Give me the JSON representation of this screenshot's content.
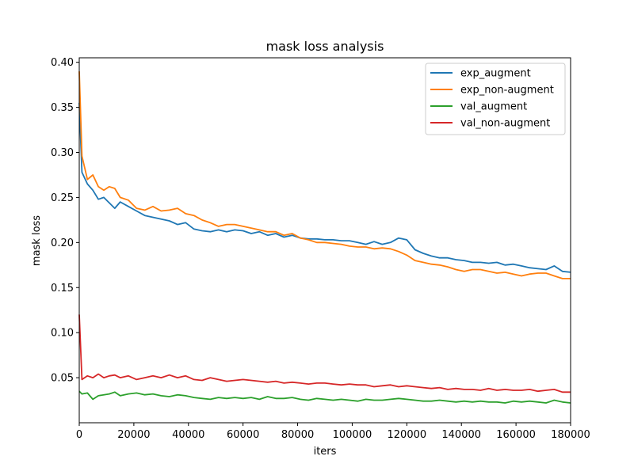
{
  "chart_data": {
    "type": "line",
    "title": "mask loss analysis",
    "xlabel": "iters",
    "ylabel": "mask loss",
    "xlim": [
      0,
      180000
    ],
    "ylim": [
      0.0,
      0.405
    ],
    "xticks": [
      0,
      20000,
      40000,
      60000,
      80000,
      100000,
      120000,
      140000,
      160000,
      180000
    ],
    "xtick_labels": [
      "0",
      "20000",
      "40000",
      "60000",
      "80000",
      "100000",
      "120000",
      "140000",
      "160000",
      "180000"
    ],
    "yticks": [
      0.05,
      0.1,
      0.15,
      0.2,
      0.25,
      0.3,
      0.35,
      0.4
    ],
    "ytick_labels": [
      "0.05",
      "0.10",
      "0.15",
      "0.20",
      "0.25",
      "0.30",
      "0.35",
      "0.40"
    ],
    "grid": false,
    "legend_position": "top-right",
    "series": [
      {
        "name": "exp_augment",
        "color": "#1f77b4",
        "x": [
          0,
          1000,
          3000,
          5000,
          7000,
          9000,
          11000,
          13000,
          15000,
          18000,
          21000,
          24000,
          27000,
          30000,
          33000,
          36000,
          39000,
          42000,
          45000,
          48000,
          51000,
          54000,
          57000,
          60000,
          63000,
          66000,
          69000,
          72000,
          75000,
          78000,
          81000,
          84000,
          87000,
          90000,
          93000,
          96000,
          99000,
          102000,
          105000,
          108000,
          111000,
          114000,
          117000,
          120000,
          123000,
          126000,
          129000,
          132000,
          135000,
          138000,
          141000,
          144000,
          147000,
          150000,
          153000,
          156000,
          159000,
          162000,
          165000,
          168000,
          171000,
          174000,
          177000,
          180000
        ],
        "y": [
          0.355,
          0.278,
          0.265,
          0.258,
          0.248,
          0.25,
          0.244,
          0.238,
          0.245,
          0.24,
          0.235,
          0.23,
          0.228,
          0.226,
          0.224,
          0.22,
          0.222,
          0.215,
          0.213,
          0.212,
          0.214,
          0.212,
          0.214,
          0.213,
          0.21,
          0.212,
          0.208,
          0.21,
          0.206,
          0.208,
          0.205,
          0.204,
          0.204,
          0.203,
          0.203,
          0.202,
          0.202,
          0.2,
          0.198,
          0.201,
          0.198,
          0.2,
          0.205,
          0.203,
          0.192,
          0.188,
          0.185,
          0.183,
          0.183,
          0.181,
          0.18,
          0.178,
          0.178,
          0.177,
          0.178,
          0.175,
          0.176,
          0.174,
          0.172,
          0.171,
          0.17,
          0.174,
          0.168,
          0.167
        ]
      },
      {
        "name": "exp_non-augment",
        "color": "#ff7f0e",
        "x": [
          0,
          1000,
          3000,
          5000,
          7000,
          9000,
          11000,
          13000,
          15000,
          18000,
          21000,
          24000,
          27000,
          30000,
          33000,
          36000,
          39000,
          42000,
          45000,
          48000,
          51000,
          54000,
          57000,
          60000,
          63000,
          66000,
          69000,
          72000,
          75000,
          78000,
          81000,
          84000,
          87000,
          90000,
          93000,
          96000,
          99000,
          102000,
          105000,
          108000,
          111000,
          114000,
          117000,
          120000,
          123000,
          126000,
          129000,
          132000,
          135000,
          138000,
          141000,
          144000,
          147000,
          150000,
          153000,
          156000,
          159000,
          162000,
          165000,
          168000,
          171000,
          174000,
          177000,
          180000
        ],
        "y": [
          0.39,
          0.296,
          0.27,
          0.275,
          0.262,
          0.258,
          0.262,
          0.26,
          0.25,
          0.247,
          0.238,
          0.236,
          0.24,
          0.235,
          0.236,
          0.238,
          0.232,
          0.23,
          0.225,
          0.222,
          0.218,
          0.22,
          0.22,
          0.218,
          0.216,
          0.214,
          0.212,
          0.212,
          0.208,
          0.21,
          0.205,
          0.203,
          0.2,
          0.2,
          0.199,
          0.198,
          0.196,
          0.195,
          0.195,
          0.193,
          0.194,
          0.193,
          0.19,
          0.186,
          0.18,
          0.178,
          0.176,
          0.175,
          0.173,
          0.17,
          0.168,
          0.17,
          0.17,
          0.168,
          0.166,
          0.167,
          0.165,
          0.163,
          0.165,
          0.166,
          0.166,
          0.163,
          0.16,
          0.16
        ]
      },
      {
        "name": "val_augment",
        "color": "#2ca02c",
        "x": [
          0,
          1000,
          3000,
          5000,
          7000,
          9000,
          11000,
          13000,
          15000,
          18000,
          21000,
          24000,
          27000,
          30000,
          33000,
          36000,
          39000,
          42000,
          45000,
          48000,
          51000,
          54000,
          57000,
          60000,
          63000,
          66000,
          69000,
          72000,
          75000,
          78000,
          81000,
          84000,
          87000,
          90000,
          93000,
          96000,
          99000,
          102000,
          105000,
          108000,
          111000,
          114000,
          117000,
          120000,
          123000,
          126000,
          129000,
          132000,
          135000,
          138000,
          141000,
          144000,
          147000,
          150000,
          153000,
          156000,
          159000,
          162000,
          165000,
          168000,
          171000,
          174000,
          177000,
          180000
        ],
        "y": [
          0.035,
          0.032,
          0.033,
          0.026,
          0.03,
          0.031,
          0.032,
          0.034,
          0.03,
          0.032,
          0.033,
          0.031,
          0.032,
          0.03,
          0.029,
          0.031,
          0.03,
          0.028,
          0.027,
          0.026,
          0.028,
          0.027,
          0.028,
          0.027,
          0.028,
          0.026,
          0.029,
          0.027,
          0.027,
          0.028,
          0.026,
          0.025,
          0.027,
          0.026,
          0.025,
          0.026,
          0.025,
          0.024,
          0.026,
          0.025,
          0.025,
          0.026,
          0.027,
          0.026,
          0.025,
          0.024,
          0.024,
          0.025,
          0.024,
          0.023,
          0.024,
          0.023,
          0.024,
          0.023,
          0.023,
          0.022,
          0.024,
          0.023,
          0.024,
          0.023,
          0.022,
          0.025,
          0.023,
          0.022
        ]
      },
      {
        "name": "val_non-augment",
        "color": "#d62728",
        "x": [
          0,
          1000,
          3000,
          5000,
          7000,
          9000,
          11000,
          13000,
          15000,
          18000,
          21000,
          24000,
          27000,
          30000,
          33000,
          36000,
          39000,
          42000,
          45000,
          48000,
          51000,
          54000,
          57000,
          60000,
          63000,
          66000,
          69000,
          72000,
          75000,
          78000,
          81000,
          84000,
          87000,
          90000,
          93000,
          96000,
          99000,
          102000,
          105000,
          108000,
          111000,
          114000,
          117000,
          120000,
          123000,
          126000,
          129000,
          132000,
          135000,
          138000,
          141000,
          144000,
          147000,
          150000,
          153000,
          156000,
          159000,
          162000,
          165000,
          168000,
          171000,
          174000,
          177000,
          180000
        ],
        "y": [
          0.12,
          0.048,
          0.052,
          0.05,
          0.054,
          0.05,
          0.052,
          0.053,
          0.05,
          0.052,
          0.048,
          0.05,
          0.052,
          0.05,
          0.053,
          0.05,
          0.052,
          0.048,
          0.047,
          0.05,
          0.048,
          0.046,
          0.047,
          0.048,
          0.047,
          0.046,
          0.045,
          0.046,
          0.044,
          0.045,
          0.044,
          0.043,
          0.044,
          0.044,
          0.043,
          0.042,
          0.043,
          0.042,
          0.042,
          0.04,
          0.041,
          0.042,
          0.04,
          0.041,
          0.04,
          0.039,
          0.038,
          0.039,
          0.037,
          0.038,
          0.037,
          0.037,
          0.036,
          0.038,
          0.036,
          0.037,
          0.036,
          0.036,
          0.037,
          0.035,
          0.036,
          0.037,
          0.034,
          0.034
        ]
      }
    ]
  }
}
